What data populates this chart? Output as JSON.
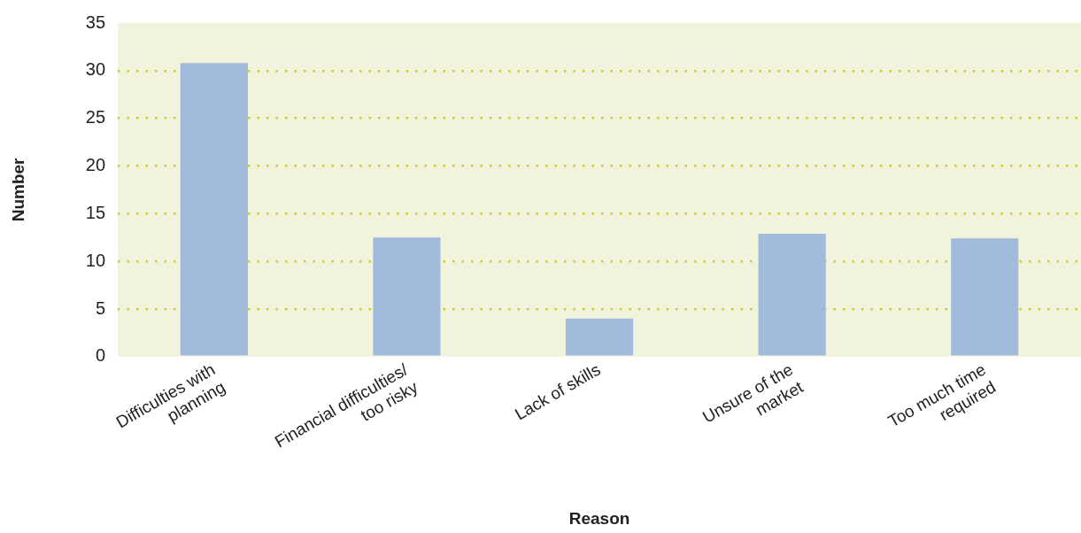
{
  "chart_data": {
    "type": "bar",
    "xlabel": "Reason",
    "ylabel": "Number",
    "categories": [
      "Difficulties with\nplanning",
      "Financial difficulties/\ntoo risky",
      "Lack of skills",
      "Unsure of the\nmarket",
      "Too much time\nrequired"
    ],
    "values": [
      30.8,
      12.5,
      4.0,
      12.9,
      12.4
    ],
    "color": "#a0bbdc",
    "ylim": [
      0,
      35
    ],
    "yticks": [
      0,
      5,
      10,
      15,
      20,
      25,
      30,
      35
    ],
    "grid": "y",
    "legend": false
  }
}
